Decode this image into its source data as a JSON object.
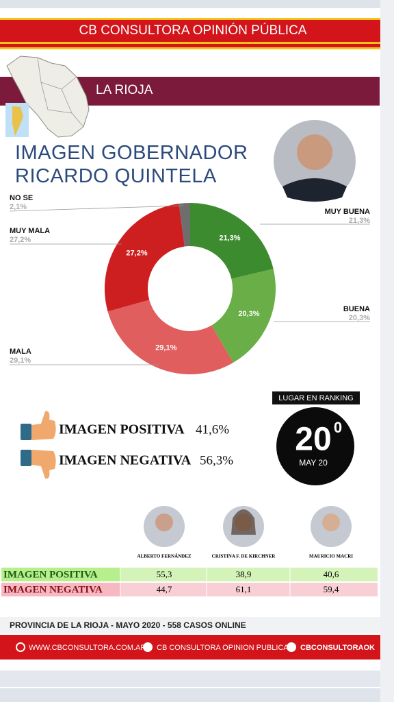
{
  "header": {
    "title": "CB CONSULTORA OPINIÓN PÚBLICA",
    "region": "LA RIOJA"
  },
  "chart_data": {
    "type": "pie",
    "title": "IMAGEN GOBERNADOR RICARDO QUINTELA",
    "categories": [
      "MUY BUENA",
      "BUENA",
      "MALA",
      "MUY MALA",
      "NO SE"
    ],
    "values": [
      21.3,
      20.3,
      29.1,
      27.2,
      2.1
    ],
    "value_labels": [
      "21,3%",
      "20,3%",
      "29,1%",
      "27,2%",
      "2,1%"
    ],
    "colors": [
      "#3d8b2f",
      "#69ae47",
      "#e15e5e",
      "#cd1f1f",
      "#6e6e6e"
    ]
  },
  "summary": {
    "positive": {
      "label": "IMAGEN POSITIVA",
      "value": "41,6%"
    },
    "negative": {
      "label": "IMAGEN NEGATIVA",
      "value": "56,3%"
    }
  },
  "ranking": {
    "title": "LUGAR EN RANKING",
    "position": "20",
    "ordinal": "0",
    "date": "MAY 20"
  },
  "comparison": {
    "columns": [
      "ALBERTO FERNÁNDEZ",
      "CRISTINA F. DE KIRCHNER",
      "MAURICIO MACRI"
    ],
    "rows": [
      {
        "label": "IMAGEN POSITIVA",
        "values": [
          "55,3",
          "38,9",
          "40,6"
        ]
      },
      {
        "label": "IMAGEN NEGATIVA",
        "values": [
          "44,7",
          "61,1",
          "59,4"
        ]
      }
    ]
  },
  "footer": {
    "note": "PROVINCIA DE LA RIOJA - MAYO 2020 -  558 CASOS ONLINE",
    "website": "WWW.CBCONSULTORA.COM.AR",
    "facebook": "CB CONSULTORA OPINION PUBLICA",
    "twitter": "CBCONSULTORAOK"
  }
}
